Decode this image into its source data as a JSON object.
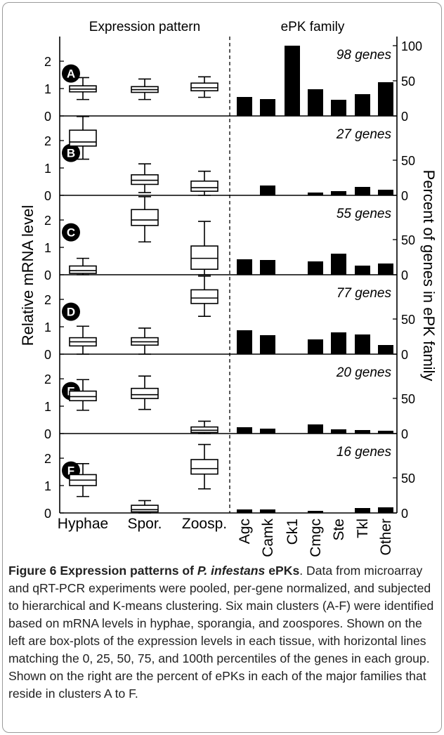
{
  "figure": {
    "left_title": "Expression pattern",
    "right_title": "ePK family",
    "left_ylabel": "Relative mRNA level",
    "right_ylabel": "Percent of genes in ePK family",
    "tissues": [
      "Hyphae",
      "Spor.",
      "Zoosp."
    ],
    "families": [
      "Agc",
      "Camk",
      "Ck1",
      "Cmgc",
      "Ste",
      "Tkl",
      "Other"
    ],
    "left_ticks": [
      "0",
      "1",
      "2"
    ],
    "right_ticks_a": [
      "0",
      "50",
      "100"
    ],
    "right_ticks_other": [
      "0",
      "50"
    ],
    "bar_color": "#000000"
  },
  "chart_data": [
    {
      "type": "box",
      "panel": "A",
      "annotation": "98 genes",
      "ylim": [
        0,
        2.9
      ],
      "categories": [
        "Hyphae",
        "Spor.",
        "Zoosp."
      ],
      "boxes": [
        {
          "min": 0.6,
          "q1": 0.88,
          "median": 0.98,
          "q3": 1.1,
          "max": 1.4
        },
        {
          "min": 0.6,
          "q1": 0.86,
          "median": 0.96,
          "q3": 1.07,
          "max": 1.35
        },
        {
          "min": 0.68,
          "q1": 0.92,
          "median": 1.03,
          "q3": 1.2,
          "max": 1.43
        }
      ]
    },
    {
      "type": "bar",
      "panel": "A",
      "annotation": "98 genes",
      "ylim": [
        0,
        100
      ],
      "categories": [
        "Agc",
        "Camk",
        "Ck1",
        "Cmgc",
        "Ste",
        "Tkl",
        "Other"
      ],
      "values": [
        27,
        24,
        100,
        38,
        23,
        31,
        48
      ]
    },
    {
      "type": "box",
      "panel": "B",
      "annotation": "27 genes",
      "ylim": [
        0,
        2.9
      ],
      "categories": [
        "Hyphae",
        "Spor.",
        "Zoosp."
      ],
      "boxes": [
        {
          "min": 1.32,
          "q1": 1.8,
          "median": 1.95,
          "q3": 2.38,
          "max": 2.88
        },
        {
          "min": 0.1,
          "q1": 0.4,
          "median": 0.55,
          "q3": 0.75,
          "max": 1.15
        },
        {
          "min": 0.0,
          "q1": 0.15,
          "median": 0.28,
          "q3": 0.52,
          "max": 0.88
        }
      ]
    },
    {
      "type": "bar",
      "panel": "B",
      "annotation": "27 genes",
      "ylim": [
        0,
        100
      ],
      "categories": [
        "Agc",
        "Camk",
        "Ck1",
        "Cmgc",
        "Ste",
        "Tkl",
        "Other"
      ],
      "values": [
        0,
        14,
        0,
        4,
        6,
        12,
        8
      ]
    },
    {
      "type": "box",
      "panel": "C",
      "annotation": "55 genes",
      "ylim": [
        0,
        2.9
      ],
      "categories": [
        "Hyphae",
        "Spor.",
        "Zoosp."
      ],
      "boxes": [
        {
          "min": 0.0,
          "q1": 0.05,
          "median": 0.15,
          "q3": 0.32,
          "max": 0.6
        },
        {
          "min": 1.2,
          "q1": 1.8,
          "median": 2.0,
          "q3": 2.38,
          "max": 2.85
        },
        {
          "min": 0.0,
          "q1": 0.2,
          "median": 0.6,
          "q3": 1.05,
          "max": 1.95
        }
      ]
    },
    {
      "type": "bar",
      "panel": "C",
      "annotation": "55 genes",
      "ylim": [
        0,
        100
      ],
      "categories": [
        "Agc",
        "Camk",
        "Ck1",
        "Cmgc",
        "Ste",
        "Tkl",
        "Other"
      ],
      "values": [
        22,
        21,
        0,
        19,
        30,
        13,
        16
      ]
    },
    {
      "type": "box",
      "panel": "D",
      "annotation": "77 genes",
      "ylim": [
        0,
        2.9
      ],
      "categories": [
        "Hyphae",
        "Spor.",
        "Zoosp."
      ],
      "boxes": [
        {
          "min": 0.0,
          "q1": 0.3,
          "median": 0.45,
          "q3": 0.6,
          "max": 1.02
        },
        {
          "min": 0.0,
          "q1": 0.33,
          "median": 0.45,
          "q3": 0.6,
          "max": 0.95
        },
        {
          "min": 1.38,
          "q1": 1.85,
          "median": 2.05,
          "q3": 2.35,
          "max": 2.85
        }
      ]
    },
    {
      "type": "bar",
      "panel": "D",
      "annotation": "77 genes",
      "ylim": [
        0,
        100
      ],
      "categories": [
        "Agc",
        "Camk",
        "Ck1",
        "Cmgc",
        "Ste",
        "Tkl",
        "Other"
      ],
      "values": [
        34,
        27,
        0,
        21,
        31,
        28,
        13
      ]
    },
    {
      "type": "box",
      "panel": "E",
      "annotation": "20 genes",
      "ylim": [
        0,
        2.9
      ],
      "categories": [
        "Hyphae",
        "Spor.",
        "Zoosp."
      ],
      "boxes": [
        {
          "min": 0.85,
          "q1": 1.2,
          "median": 1.35,
          "q3": 1.55,
          "max": 1.97
        },
        {
          "min": 0.88,
          "q1": 1.28,
          "median": 1.42,
          "q3": 1.65,
          "max": 2.1
        },
        {
          "min": 0.0,
          "q1": 0.04,
          "median": 0.12,
          "q3": 0.24,
          "max": 0.45
        }
      ]
    },
    {
      "type": "bar",
      "panel": "E",
      "annotation": "20 genes",
      "ylim": [
        0,
        100
      ],
      "categories": [
        "Agc",
        "Camk",
        "Ck1",
        "Cmgc",
        "Ste",
        "Tkl",
        "Other"
      ],
      "values": [
        9,
        7,
        0,
        13,
        6,
        5,
        4
      ]
    },
    {
      "type": "box",
      "panel": "F",
      "annotation": "16 genes",
      "ylim": [
        0,
        2.9
      ],
      "categories": [
        "Hyphae",
        "Spor.",
        "Zoosp."
      ],
      "boxes": [
        {
          "min": 0.6,
          "q1": 1.0,
          "median": 1.2,
          "q3": 1.4,
          "max": 1.8
        },
        {
          "min": 0.0,
          "q1": 0.04,
          "median": 0.12,
          "q3": 0.28,
          "max": 0.45
        },
        {
          "min": 0.88,
          "q1": 1.42,
          "median": 1.62,
          "q3": 1.95,
          "max": 2.5
        }
      ]
    },
    {
      "type": "bar",
      "panel": "F",
      "annotation": "16 genes",
      "ylim": [
        0,
        100
      ],
      "categories": [
        "Agc",
        "Camk",
        "Ck1",
        "Cmgc",
        "Ste",
        "Tkl",
        "Other"
      ],
      "values": [
        5,
        5,
        0,
        3,
        0,
        7,
        8
      ]
    }
  ],
  "caption": {
    "label": "Figure 6 Expression patterns of ",
    "label_species": "P. infestans",
    "label_end": " ePKs",
    "text": ". Data from microarray and qRT-PCR experiments were pooled, per-gene normalized, and subjected to hierarchical and K-means clustering. Six main clusters (A-F) were identified based on mRNA levels in hyphae, sporangia, and zoospores. Shown on the left are box-plots of the expression levels in each tissue, with horizontal lines matching the 0, 25, 50, 75, and 100th percentiles of the genes in each group. Shown on the right are the percent of ePKs in each of the major families that reside in clusters A to F."
  }
}
